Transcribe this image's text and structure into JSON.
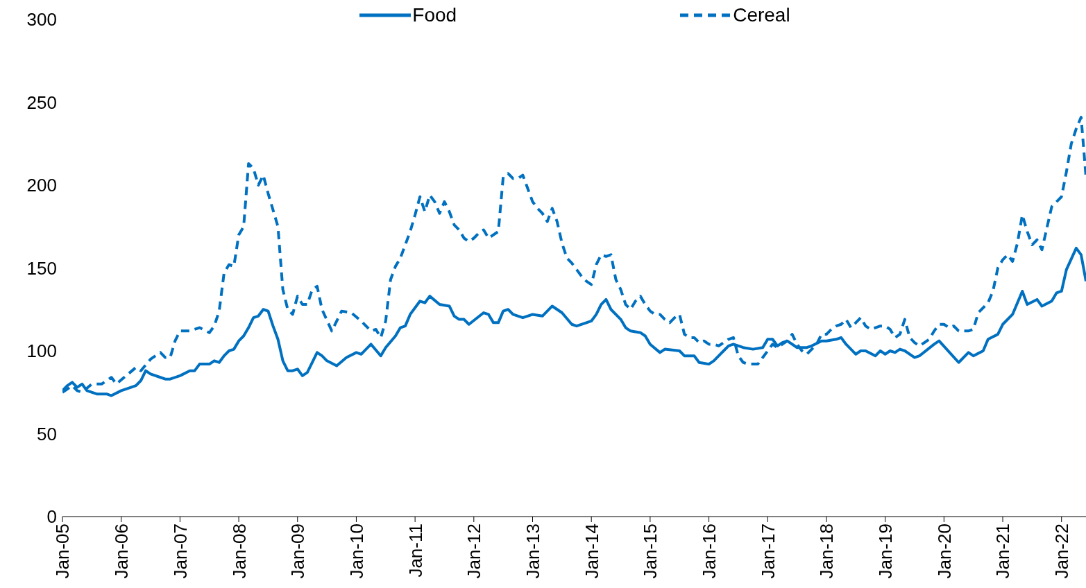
{
  "chart_data": {
    "type": "line",
    "legend": "top",
    "grid": false,
    "marker": "none",
    "xlim": [
      "2005-01",
      "2022-06"
    ],
    "xticks": [
      {
        "value": "2005-01",
        "label": "Jan-05"
      },
      {
        "value": "2006-01",
        "label": "Jan-06"
      },
      {
        "value": "2007-01",
        "label": "Jan-07"
      },
      {
        "value": "2008-01",
        "label": "Jan-08"
      },
      {
        "value": "2009-01",
        "label": "Jan-09"
      },
      {
        "value": "2010-01",
        "label": "Jan-10"
      },
      {
        "value": "2011-01",
        "label": "Jan-11"
      },
      {
        "value": "2012-01",
        "label": "Jan-12"
      },
      {
        "value": "2013-01",
        "label": "Jan-13"
      },
      {
        "value": "2014-01",
        "label": "Jan-14"
      },
      {
        "value": "2015-01",
        "label": "Jan-15"
      },
      {
        "value": "2016-01",
        "label": "Jan-16"
      },
      {
        "value": "2017-01",
        "label": "Jan-17"
      },
      {
        "value": "2018-01",
        "label": "Jan-18"
      },
      {
        "value": "2019-01",
        "label": "Jan-19"
      },
      {
        "value": "2020-01",
        "label": "Jan-20"
      },
      {
        "value": "2021-01",
        "label": "Jan-21"
      },
      {
        "value": "2022-01",
        "label": "Jan-22"
      }
    ],
    "ylim": [
      0,
      300
    ],
    "yticks": [
      0,
      50,
      100,
      150,
      200,
      250,
      300
    ],
    "series": [
      {
        "name": "Food",
        "color": "#0070c0",
        "line_style": "solid",
        "x": [
          "2005-01",
          "2005-02",
          "2005-03",
          "2005-04",
          "2005-05",
          "2005-06",
          "2005-08",
          "2005-10",
          "2005-11",
          "2006-01",
          "2006-03",
          "2006-04",
          "2006-05",
          "2006-06",
          "2006-07",
          "2006-09",
          "2006-10",
          "2006-11",
          "2007-01",
          "2007-03",
          "2007-04",
          "2007-05",
          "2007-07",
          "2007-08",
          "2007-09",
          "2007-10",
          "2007-11",
          "2007-12",
          "2008-01",
          "2008-02",
          "2008-03",
          "2008-04",
          "2008-05",
          "2008-06",
          "2008-07",
          "2008-08",
          "2008-09",
          "2008-10",
          "2008-11",
          "2008-12",
          "2009-01",
          "2009-02",
          "2009-03",
          "2009-05",
          "2009-06",
          "2009-07",
          "2009-09",
          "2009-11",
          "2010-01",
          "2010-02",
          "2010-04",
          "2010-06",
          "2010-07",
          "2010-09",
          "2010-10",
          "2010-11",
          "2010-12",
          "2011-02",
          "2011-03",
          "2011-04",
          "2011-06",
          "2011-08",
          "2011-09",
          "2011-10",
          "2011-11",
          "2011-12",
          "2012-03",
          "2012-04",
          "2012-05",
          "2012-06",
          "2012-07",
          "2012-08",
          "2012-09",
          "2012-11",
          "2013-01",
          "2013-03",
          "2013-05",
          "2013-07",
          "2013-09",
          "2013-10",
          "2013-12",
          "2014-01",
          "2014-02",
          "2014-03",
          "2014-04",
          "2014-05",
          "2014-07",
          "2014-08",
          "2014-09",
          "2014-11",
          "2014-12",
          "2015-01",
          "2015-03",
          "2015-04",
          "2015-07",
          "2015-08",
          "2015-10",
          "2015-11",
          "2016-01",
          "2016-02",
          "2016-04",
          "2016-05",
          "2016-06",
          "2016-08",
          "2016-10",
          "2016-12",
          "2017-01",
          "2017-02",
          "2017-03",
          "2017-04",
          "2017-05",
          "2017-07",
          "2017-09",
          "2017-10",
          "2017-12",
          "2018-01",
          "2018-03",
          "2018-04",
          "2018-05",
          "2018-07",
          "2018-08",
          "2018-09",
          "2018-11",
          "2018-12",
          "2019-01",
          "2019-02",
          "2019-03",
          "2019-04",
          "2019-05",
          "2019-07",
          "2019-08",
          "2019-11",
          "2019-12",
          "2020-04",
          "2020-06",
          "2020-07",
          "2020-09",
          "2020-10",
          "2020-12",
          "2021-01",
          "2021-03",
          "2021-05",
          "2021-06",
          "2021-08",
          "2021-09",
          "2021-11",
          "2021-12",
          "2022-01",
          "2022-02",
          "2022-04",
          "2022-05",
          "2022-06"
        ],
        "values": [
          76,
          79,
          81,
          78,
          80,
          76,
          74,
          74,
          73,
          76,
          78,
          79,
          82,
          88,
          86,
          84,
          83,
          83,
          85,
          88,
          88,
          92,
          92,
          94,
          93,
          97,
          100,
          101,
          106,
          109,
          114,
          120,
          121,
          125,
          124,
          115,
          107,
          94,
          88,
          88,
          89,
          85,
          87,
          99,
          97,
          94,
          91,
          96,
          99,
          98,
          104,
          97,
          102,
          109,
          114,
          115,
          122,
          130,
          129,
          133,
          128,
          127,
          121,
          119,
          119,
          116,
          123,
          122,
          117,
          117,
          124,
          125,
          122,
          120,
          122,
          121,
          127,
          123,
          116,
          115,
          117,
          118,
          122,
          128,
          131,
          125,
          119,
          114,
          112,
          111,
          109,
          104,
          99,
          101,
          100,
          97,
          97,
          93,
          92,
          94,
          100,
          103,
          104,
          102,
          101,
          102,
          107,
          107,
          103,
          105,
          106,
          102,
          102,
          103,
          106,
          106,
          107,
          108,
          104,
          98,
          100,
          100,
          97,
          100,
          98,
          100,
          99,
          101,
          100,
          96,
          97,
          104,
          106,
          93,
          99,
          97,
          100,
          107,
          110,
          116,
          122,
          136,
          128,
          131,
          127,
          130,
          135,
          136,
          149,
          162,
          158,
          142
        ]
      },
      {
        "name": "Cereal",
        "color": "#0070c0",
        "line_style": "dashed",
        "x": [
          "2005-01",
          "2005-02",
          "2005-03",
          "2005-04",
          "2005-05",
          "2005-07",
          "2005-09",
          "2005-11",
          "2005-12",
          "2006-02",
          "2006-04",
          "2006-05",
          "2006-07",
          "2006-08",
          "2006-09",
          "2006-10",
          "2006-11",
          "2006-12",
          "2007-01",
          "2007-03",
          "2007-05",
          "2007-07",
          "2007-08",
          "2007-09",
          "2007-10",
          "2007-11",
          "2007-12",
          "2008-01",
          "2008-02",
          "2008-03",
          "2008-04",
          "2008-05",
          "2008-06",
          "2008-07",
          "2008-08",
          "2008-09",
          "2008-10",
          "2008-11",
          "2008-12",
          "2009-01",
          "2009-02",
          "2009-03",
          "2009-04",
          "2009-05",
          "2009-06",
          "2009-08",
          "2009-10",
          "2009-12",
          "2010-02",
          "2010-04",
          "2010-05",
          "2010-06",
          "2010-07",
          "2010-08",
          "2010-09",
          "2010-10",
          "2010-12",
          "2011-01",
          "2011-02",
          "2011-03",
          "2011-04",
          "2011-05",
          "2011-06",
          "2011-07",
          "2011-08",
          "2011-09",
          "2011-10",
          "2011-11",
          "2011-12",
          "2012-01",
          "2012-02",
          "2012-03",
          "2012-04",
          "2012-05",
          "2012-06",
          "2012-07",
          "2012-08",
          "2012-09",
          "2012-10",
          "2012-11",
          "2012-12",
          "2013-01",
          "2013-02",
          "2013-03",
          "2013-04",
          "2013-05",
          "2013-06",
          "2013-07",
          "2013-08",
          "2013-09",
          "2013-10",
          "2013-11",
          "2013-12",
          "2014-01",
          "2014-02",
          "2014-03",
          "2014-04",
          "2014-05",
          "2014-06",
          "2014-07",
          "2014-08",
          "2014-09",
          "2014-10",
          "2014-11",
          "2014-12",
          "2015-01",
          "2015-02",
          "2015-03",
          "2015-04",
          "2015-05",
          "2015-06",
          "2015-07",
          "2015-08",
          "2015-09",
          "2015-10",
          "2015-11",
          "2015-12",
          "2016-01",
          "2016-02",
          "2016-03",
          "2016-04",
          "2016-05",
          "2016-06",
          "2016-07",
          "2016-08",
          "2016-09",
          "2016-10",
          "2016-11",
          "2016-12",
          "2017-01",
          "2017-02",
          "2017-03",
          "2017-04",
          "2017-05",
          "2017-06",
          "2017-07",
          "2017-08",
          "2017-09",
          "2017-10",
          "2017-11",
          "2017-12",
          "2018-01",
          "2018-02",
          "2018-03",
          "2018-04",
          "2018-05",
          "2018-06",
          "2018-07",
          "2018-08",
          "2018-09",
          "2018-10",
          "2018-11",
          "2018-12",
          "2019-01",
          "2019-02",
          "2019-03",
          "2019-04",
          "2019-05",
          "2019-06",
          "2019-07",
          "2019-08",
          "2019-09",
          "2019-10",
          "2019-11",
          "2019-12",
          "2020-01",
          "2020-02",
          "2020-03",
          "2020-04",
          "2020-05",
          "2020-06",
          "2020-07",
          "2020-08",
          "2020-09",
          "2020-10",
          "2020-11",
          "2020-12",
          "2021-01",
          "2021-02",
          "2021-03",
          "2021-04",
          "2021-05",
          "2021-06",
          "2021-07",
          "2021-08",
          "2021-09",
          "2021-10",
          "2021-11",
          "2021-12",
          "2022-01",
          "2022-02",
          "2022-03",
          "2022-04",
          "2022-05",
          "2022-06"
        ],
        "values": [
          75,
          77,
          79,
          76,
          75,
          80,
          80,
          84,
          80,
          85,
          90,
          88,
          95,
          97,
          99,
          96,
          96,
          106,
          112,
          112,
          114,
          111,
          115,
          124,
          147,
          152,
          151,
          170,
          175,
          213,
          210,
          200,
          206,
          195,
          185,
          175,
          137,
          125,
          122,
          133,
          128,
          128,
          137,
          139,
          125,
          112,
          124,
          123,
          118,
          112,
          113,
          108,
          118,
          143,
          151,
          156,
          172,
          182,
          193,
          184,
          194,
          190,
          183,
          190,
          184,
          176,
          173,
          168,
          166,
          168,
          171,
          173,
          168,
          170,
          172,
          205,
          207,
          204,
          204,
          206,
          198,
          190,
          186,
          183,
          178,
          186,
          178,
          165,
          156,
          153,
          149,
          145,
          142,
          140,
          152,
          158,
          157,
          158,
          143,
          137,
          128,
          125,
          130,
          133,
          128,
          124,
          122,
          122,
          119,
          117,
          120,
          122,
          110,
          108,
          108,
          105,
          106,
          104,
          104,
          103,
          105,
          107,
          108,
          97,
          93,
          92,
          92,
          92,
          96,
          100,
          104,
          102,
          104,
          106,
          110,
          104,
          100,
          98,
          101,
          104,
          110,
          110,
          113,
          115,
          116,
          119,
          114,
          117,
          120,
          115,
          113,
          114,
          115,
          115,
          113,
          108,
          110,
          119,
          108,
          105,
          103,
          105,
          107,
          112,
          116,
          116,
          114,
          115,
          112,
          112,
          112,
          113,
          123,
          126,
          129,
          136,
          150,
          155,
          158,
          154,
          165,
          182,
          172,
          164,
          167,
          161,
          174,
          187,
          190,
          193,
          208,
          225,
          234,
          241,
          205
        ]
      }
    ]
  }
}
